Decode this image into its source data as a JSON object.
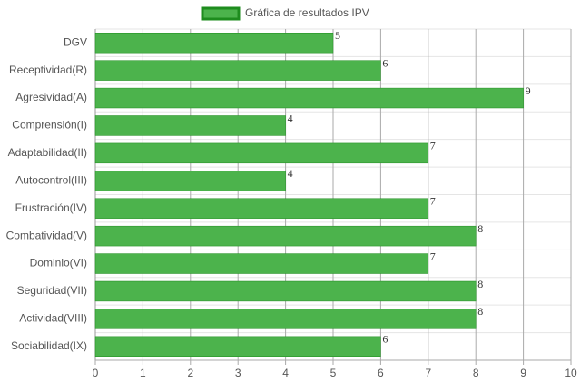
{
  "chart_data": {
    "type": "bar",
    "orientation": "horizontal",
    "categories": [
      "DGV",
      "Receptividad(R)",
      "Agresividad(A)",
      "Comprensión(I)",
      "Adaptabilidad(II)",
      "Autocontrol(III)",
      "Frustración(IV)",
      "Combatividad(V)",
      "Dominio(VI)",
      "Seguridad(VII)",
      "Actividad(VIII)",
      "Sociabilidad(IX)"
    ],
    "series": [
      {
        "name": "Gráfica de resultados IPV",
        "color": "#4cb34c",
        "border": "#1e8c1e",
        "values": [
          5,
          6,
          9,
          4,
          7,
          4,
          7,
          8,
          7,
          8,
          8,
          6
        ]
      }
    ],
    "xlim": [
      0,
      10
    ],
    "xticks": [
      0,
      1,
      2,
      3,
      4,
      5,
      6,
      7,
      8,
      9,
      10
    ],
    "grid": true,
    "legend": "top"
  }
}
